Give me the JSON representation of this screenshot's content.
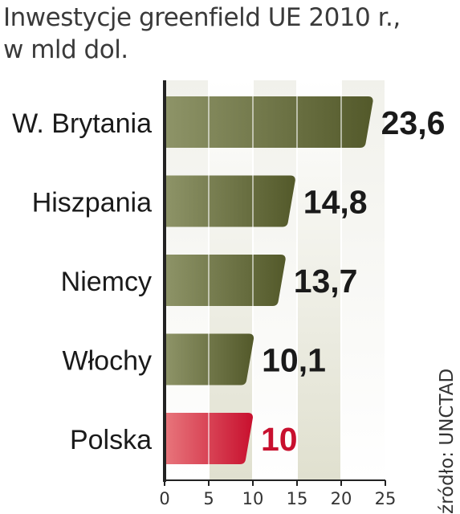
{
  "chart_data": {
    "type": "bar",
    "orientation": "horizontal",
    "title": "Inwestycje greenfield UE 2010 r.,",
    "subtitle": "w mld dol.",
    "source": "źródło: UNCTAD",
    "categories": [
      "W. Brytania",
      "Hiszpania",
      "Niemcy",
      "Włochy",
      "Polska"
    ],
    "values": [
      23.6,
      14.8,
      13.7,
      10.1,
      10
    ],
    "value_labels": [
      "23,6",
      "14,8",
      "13,7",
      "10,1",
      "10"
    ],
    "highlight_index": 4,
    "xlim": [
      0,
      25
    ],
    "xticks": [
      0,
      5,
      10,
      15,
      20,
      25
    ],
    "xtick_labels": [
      "0",
      "5",
      "10",
      "15",
      "20",
      "25"
    ],
    "grid": true,
    "colors": {
      "bar_dark": "#53592a",
      "bar_light": "#8e9468",
      "highlight_dark": "#c8102e",
      "highlight_light": "#e8767c",
      "highlight_label": "#c8102e",
      "label": "#1a1a1a",
      "band_light": "#f1f1eb",
      "band_dark": "#e0e0cf",
      "axis": "#222222"
    }
  }
}
